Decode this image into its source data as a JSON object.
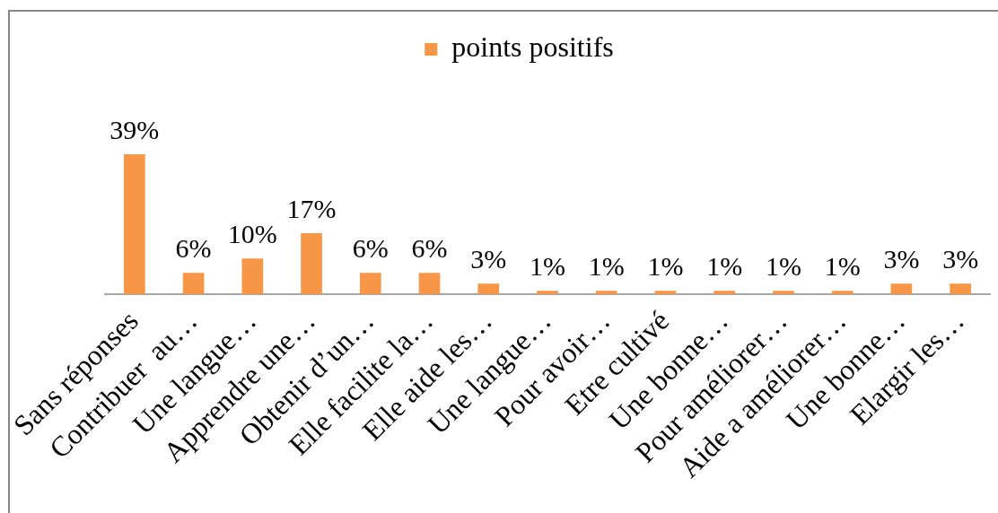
{
  "chart_data": {
    "type": "bar",
    "legend": "top",
    "categories": [
      "Sans réponses",
      "Contribuer  au…",
      "Une langue…",
      "Apprendre une…",
      "Obtenir d’un…",
      "Elle facilite la…",
      "Elle aide les…",
      "Une langue…",
      "Pour avoir…",
      "Etre cultivé",
      "Une bonne…",
      "Pour améliorer…",
      "Aide a améliorer…",
      "Une bonne…",
      "Elargir les…"
    ],
    "series": [
      {
        "name": "points positifs",
        "color": "#f79646",
        "values": [
          39,
          6,
          10,
          17,
          6,
          6,
          3,
          1,
          1,
          1,
          1,
          1,
          1,
          3,
          3
        ],
        "value_labels": [
          "39%",
          "6%",
          "10%",
          "17%",
          "6%",
          "6%",
          "3%",
          "1%",
          "1%",
          "1%",
          "1%",
          "1%",
          "1%",
          "3%",
          "3%"
        ]
      }
    ]
  }
}
